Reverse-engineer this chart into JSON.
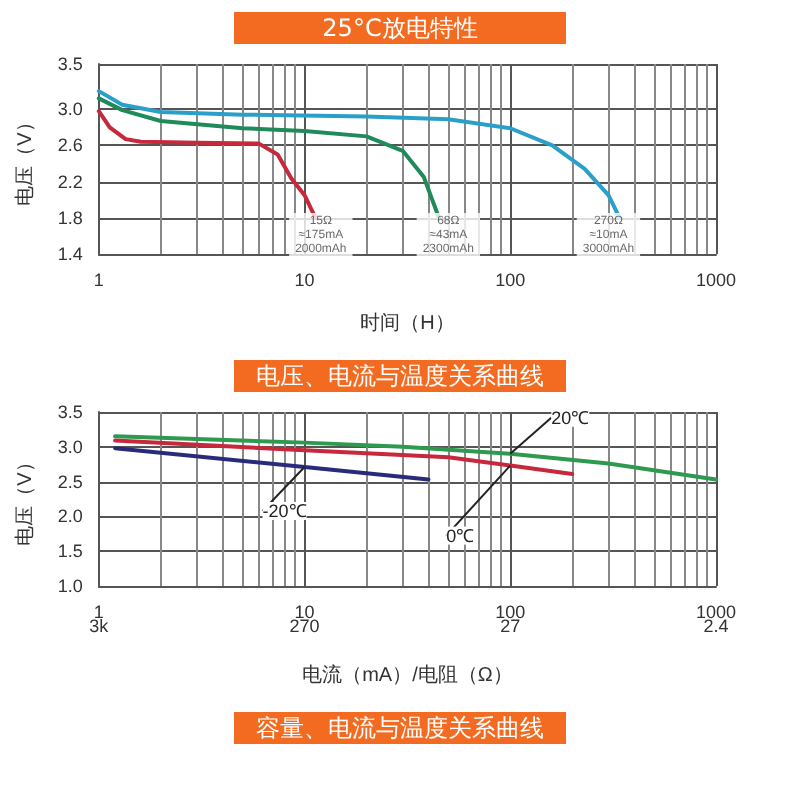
{
  "chart_data": [
    {
      "type": "line",
      "title": "25°C放电特性",
      "xlabel": "时间（H）",
      "ylabel": "电压（V）",
      "log": "x",
      "xlim": [
        1,
        1000
      ],
      "xticks": [
        1,
        10,
        100,
        1000
      ],
      "ylim": [
        1.4,
        3.5
      ],
      "yticks": [
        1.4,
        1.8,
        2.2,
        2.6,
        {
          "value": 3,
          "label": "3.0"
        },
        3.5
      ],
      "grid": true,
      "marker": "none",
      "line_style": "solid",
      "series": [
        {
          "color": "#c8283c",
          "x": [
            1,
            1.13,
            1.35,
            1.6,
            3,
            6,
            7.4,
            8.6,
            10,
            11.3
          ],
          "values": [
            2.98,
            2.8,
            2.67,
            2.64,
            2.63,
            2.62,
            2.5,
            2.24,
            2.05,
            1.8
          ]
        },
        {
          "color": "#1f8a5a",
          "x": [
            1,
            1.3,
            2,
            5,
            10,
            20,
            30,
            38,
            45
          ],
          "values": [
            3.12,
            2.99,
            2.87,
            2.79,
            2.76,
            2.7,
            2.54,
            2.25,
            1.8
          ]
        },
        {
          "color": "#2aa0c8",
          "x": [
            1,
            1.3,
            2,
            5,
            20,
            50,
            100,
            160,
            230,
            300,
            340
          ],
          "values": [
            3.2,
            3.05,
            2.97,
            2.94,
            2.92,
            2.89,
            2.79,
            2.6,
            2.34,
            2.05,
            1.8
          ]
        }
      ],
      "annotations": [
        {
          "text": "15Ω\n≈175mA\n2000mAh",
          "x": 12,
          "y": 1.6
        },
        {
          "text": "68Ω\n≈43mA\n2300mAh",
          "x": 50,
          "y": 1.6
        },
        {
          "text": "270Ω\n≈10mA\n3000mAh",
          "x": 300,
          "y": 1.6
        }
      ]
    },
    {
      "type": "line",
      "title": "电压、电流与温度关系曲线",
      "xlabel": "电流（mA）/电阻（Ω）",
      "ylabel": "电压（V）",
      "log": "x",
      "xlim": [
        1,
        1000
      ],
      "xticks": [
        1,
        10,
        100,
        1000
      ],
      "annotations": [
        "3k",
        "270",
        "27",
        "2.4"
      ],
      "ylim": [
        1.0,
        3.5
      ],
      "yticks": [
        {
          "value": 1,
          "label": "1.0"
        },
        1.5,
        {
          "value": 2,
          "label": "2.0"
        },
        2.5,
        {
          "value": 3,
          "label": "3.0"
        },
        3.5
      ],
      "grid": true,
      "marker": "none",
      "line_style": "solid",
      "series": [
        {
          "name": "20℃",
          "color": "#2e9a50",
          "x": [
            1.2,
            10,
            30,
            100,
            300,
            1000
          ],
          "values": [
            3.15,
            3.06,
            3.0,
            2.9,
            2.76,
            2.53
          ]
        },
        {
          "name": "0℃",
          "color": "#c8283c",
          "x": [
            1.2,
            10,
            50,
            100,
            200
          ],
          "values": [
            3.09,
            2.95,
            2.85,
            2.73,
            2.61
          ]
        },
        {
          "name": "-20℃",
          "color": "#2a2a7a",
          "x": [
            1.2,
            10,
            40
          ],
          "values": [
            2.98,
            2.71,
            2.53
          ]
        }
      ]
    },
    {
      "type": "other",
      "title": "容量、电流与温度关系曲线"
    }
  ]
}
